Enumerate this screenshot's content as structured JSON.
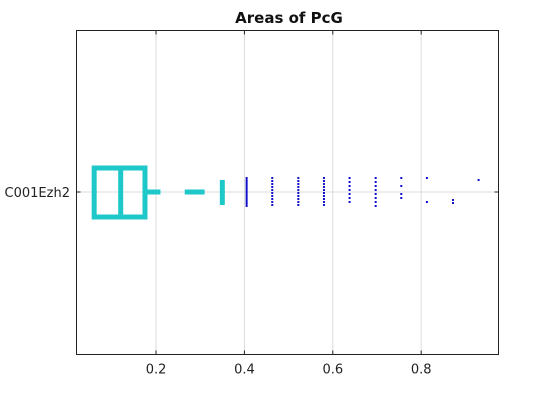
{
  "chart_data": {
    "type": "boxplot",
    "title": "Areas of PcG",
    "xlabel": "",
    "ylabel": "",
    "xlim": [
      0.02,
      0.975
    ],
    "xticks": [
      0.2,
      0.4,
      0.6,
      0.8
    ],
    "xtick_labels": [
      "0.2",
      "0.4",
      "0.6",
      "0.8"
    ],
    "categories": [
      "C001Ezh2"
    ],
    "grid": true,
    "colors": {
      "box": "#1ec8c8",
      "outliers": "#1010c8"
    },
    "box": {
      "q1": 0.06,
      "median": 0.12,
      "q3": 0.175,
      "whisker_low": 0.06,
      "whisker_high": 0.35,
      "whisker_dashes": [
        [
          0.175,
          0.21
        ],
        [
          0.265,
          0.31
        ]
      ]
    },
    "outliers": [
      {
        "x": 0.405,
        "y": [
          -14,
          -12,
          -10,
          -8,
          -6,
          -4,
          -2,
          0,
          2,
          4,
          6,
          8,
          10,
          12,
          14
        ]
      },
      {
        "x": 0.463,
        "y": [
          -14,
          -11,
          -8,
          -5,
          -2,
          1,
          4,
          7,
          10,
          13
        ]
      },
      {
        "x": 0.522,
        "y": [
          -14,
          -11,
          -8,
          -5,
          -2,
          1,
          4,
          7,
          10,
          13
        ]
      },
      {
        "x": 0.58,
        "y": [
          -14,
          -11,
          -8,
          -5,
          -2,
          1,
          4,
          7,
          10,
          13
        ]
      },
      {
        "x": 0.638,
        "y": [
          -14,
          -10,
          -6,
          -2,
          2,
          6,
          10
        ]
      },
      {
        "x": 0.697,
        "y": [
          -14,
          -10,
          -6,
          -2,
          2,
          6,
          10,
          14
        ]
      },
      {
        "x": 0.755,
        "y": [
          -14,
          -6,
          2,
          6
        ]
      },
      {
        "x": 0.813,
        "y": [
          -14,
          10
        ]
      },
      {
        "x": 0.872,
        "y": [
          8,
          11
        ]
      },
      {
        "x": 0.93,
        "y": [
          -12
        ]
      }
    ]
  }
}
